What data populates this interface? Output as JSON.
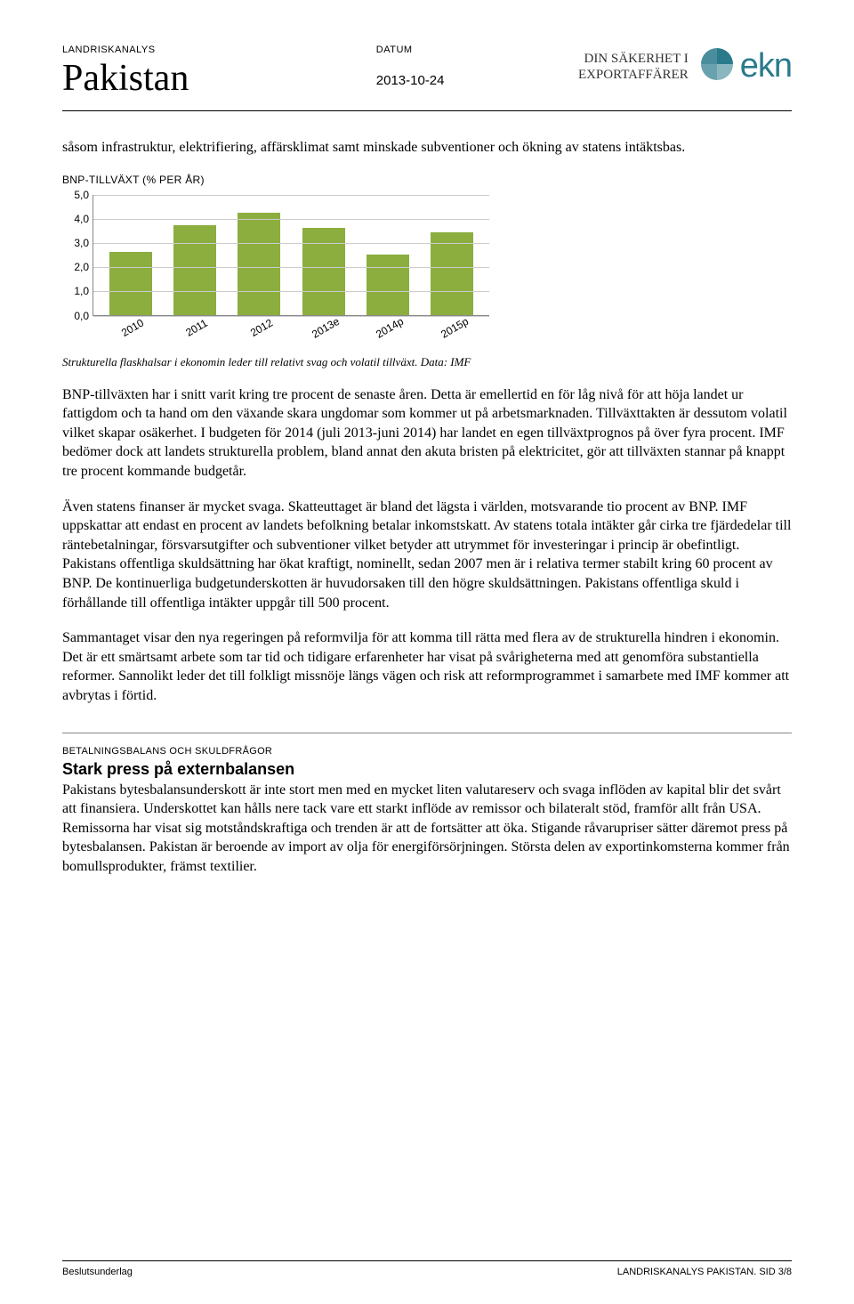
{
  "header": {
    "doc_type_label": "LANDRISKANALYS",
    "country": "Pakistan",
    "date_label": "DATUM",
    "date_value": "2013-10-24",
    "brand_line1": "DIN SÄKERHET I",
    "brand_line2": "EXPORTAFFÄRER",
    "logo_text": "ekn",
    "logo_color": "#2a7a8c"
  },
  "intro_para": "såsom infrastruktur, elektrifiering, affärsklimat samt minskade subventioner och ökning av statens intäktsbas.",
  "chart": {
    "title": "BNP-TILLVÄXT (% PER ÅR)",
    "type": "bar",
    "categories": [
      "2010",
      "2011",
      "2012",
      "2013e",
      "2014p",
      "2015p"
    ],
    "values": [
      2.6,
      3.7,
      4.2,
      3.6,
      2.5,
      3.4
    ],
    "bar_color": "#8bae3f",
    "ylim": [
      0,
      5
    ],
    "ytick_step": 1,
    "yticks": [
      "0,0",
      "1,0",
      "2,0",
      "3,0",
      "4,0",
      "5,0"
    ],
    "grid_color": "#cccccc",
    "axis_color": "#888888",
    "background_color": "#ffffff",
    "label_fontsize": 12
  },
  "chart_caption": "Strukturella flaskhalsar i ekonomin leder till relativt svag och volatil tillväxt. Data: IMF",
  "para1": "BNP-tillväxten har i snitt varit kring tre procent de senaste åren. Detta är emellertid en för låg nivå för att höja landet ur fattigdom och ta hand om den växande skara ungdomar som kommer ut på arbetsmarknaden. Tillväxttakten är dessutom volatil vilket skapar osäkerhet. I budgeten för 2014 (juli 2013-juni 2014) har landet en egen tillväxtprognos på över fyra procent. IMF bedömer dock att landets strukturella problem, bland annat den akuta bristen på elektricitet, gör att tillväxten stannar på knappt tre procent kommande budgetår.",
  "para2": "Även statens finanser är mycket svaga. Skatteuttaget är bland det lägsta i världen, motsvarande tio procent av BNP. IMF uppskattar att endast en procent av landets befolkning betalar inkomstskatt. Av statens totala intäkter går cirka tre fjärdedelar till räntebetalningar, försvarsutgifter och subventioner vilket betyder att utrymmet för investeringar i princip är obefintligt. Pakistans offentliga skuldsättning har ökat kraftigt, nominellt, sedan 2007 men är i relativa termer stabilt kring 60 procent av BNP. De kontinuerliga budgetunderskotten är huvudorsaken till den högre skuldsättningen. Pakistans offentliga skuld i förhållande till offentliga intäkter uppgår till 500 procent.",
  "para3": "Sammantaget visar den nya regeringen på reformvilja för att komma till rätta med flera av de strukturella hindren i ekonomin. Det är ett smärtsamt arbete som tar tid och tidigare erfarenheter har visat på svårigheterna med att genomföra substantiella reformer. Sannolikt leder det till folkligt missnöje längs vägen och risk att reformprogrammet i samarbete med IMF kommer att avbrytas i förtid.",
  "section": {
    "label": "BETALNINGSBALANS OCH SKULDFRÅGOR",
    "heading": "Stark press på externbalansen",
    "body": "Pakistans bytesbalansunderskott är inte stort men med en mycket liten valutareserv och svaga inflöden av kapital blir det svårt att finansiera. Underskottet kan hålls nere tack vare ett starkt inflöde av remissor och bilateralt stöd, framför allt från USA. Remissorna har visat sig motståndskraftiga och trenden är att de fortsätter att öka. Stigande råvarupriser sätter däremot press på bytesbalansen. Pakistan är beroende av import av olja för energiförsörjningen. Största delen av exportinkomsterna kommer från bomullsprodukter, främst textilier."
  },
  "footer": {
    "left": "Beslutsunderlag",
    "right": "LANDRISKANALYS PAKISTAN. SID 3/8"
  }
}
